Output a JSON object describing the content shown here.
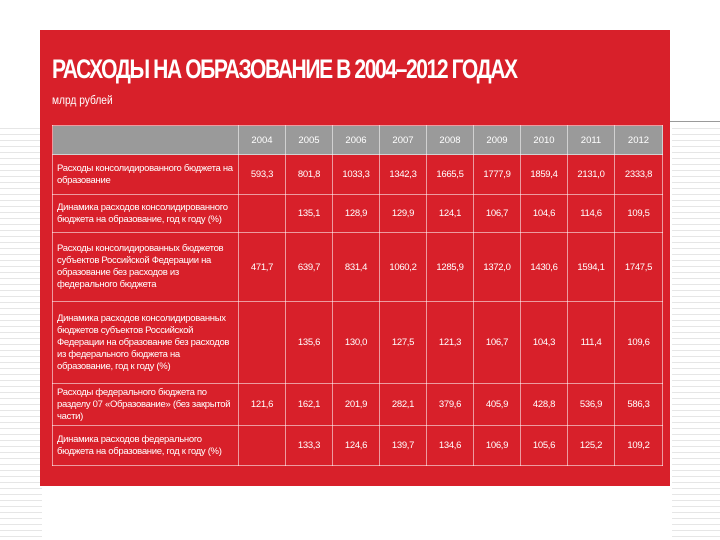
{
  "title": "РАСХОДЫ НА ОБРАЗОВАНИЕ В 2004–2012 ГОДАХ",
  "subtitle": "млрд рублей",
  "years": [
    "2004",
    "2005",
    "2006",
    "2007",
    "2008",
    "2009",
    "2010",
    "2011",
    "2012"
  ],
  "rows": [
    {
      "label": "Расходы консолидированного бюджета на образование",
      "values": [
        "593,3",
        "801,8",
        "1033,3",
        "1342,3",
        "1665,5",
        "1777,9",
        "1859,4",
        "2131,0",
        "2333,8"
      ]
    },
    {
      "label": "Динамика расходов консолидированного бюджета на образование, год к году (%)",
      "values": [
        "",
        "135,1",
        "128,9",
        "129,9",
        "124,1",
        "106,7",
        "104,6",
        "114,6",
        "109,5"
      ]
    },
    {
      "label": "Расходы консолидированных бюджетов субъектов Российской Федерации на образование без расходов из федерального бюджета",
      "values": [
        "471,7",
        "639,7",
        "831,4",
        "1060,2",
        "1285,9",
        "1372,0",
        "1430,6",
        "1594,1",
        "1747,5"
      ]
    },
    {
      "label": "Динамика расходов консолидированных бюджетов субъектов Российской Федерации на образование без расходов из федерального бюджета на образование, год к году (%)",
      "values": [
        "",
        "135,6",
        "130,0",
        "127,5",
        "121,3",
        "106,7",
        "104,3",
        "111,4",
        "109,6"
      ]
    },
    {
      "label": "Расходы федерального бюджета по разделу 07 «Образование» (без закрытой части)",
      "values": [
        "121,6",
        "162,1",
        "201,9",
        "282,1",
        "379,6",
        "405,9",
        "428,8",
        "536,9",
        "586,3"
      ]
    },
    {
      "label": "Динамика расходов федерального бюджета на образование, год к году (%)",
      "values": [
        "",
        "133,3",
        "124,6",
        "139,7",
        "134,6",
        "106,9",
        "105,6",
        "125,2",
        "109,2"
      ]
    }
  ]
}
